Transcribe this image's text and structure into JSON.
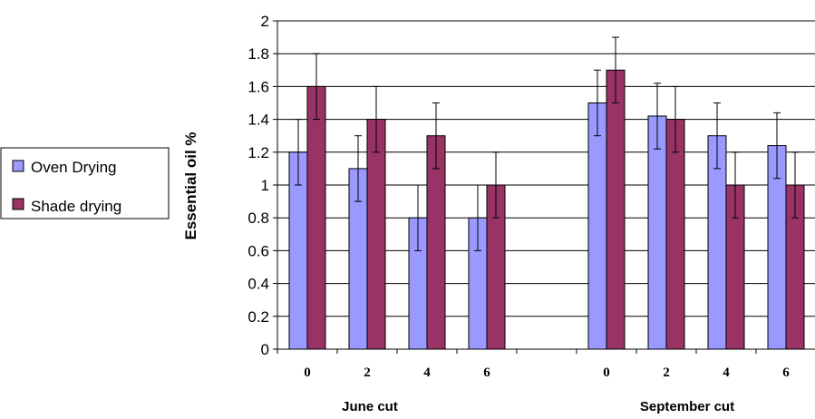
{
  "chart_data": {
    "type": "bar",
    "ylabel": "Essential oil %",
    "ylim": [
      0,
      2
    ],
    "yticks": [
      "0",
      "0.2",
      "0.4",
      "0.6",
      "0.8",
      "1",
      "1.2",
      "1.4",
      "1.6",
      "1.8",
      "2"
    ],
    "grid": true,
    "legend_position": "left",
    "groups": [
      {
        "label": "June cut",
        "categories": [
          "0",
          "2",
          "4",
          "6"
        ]
      },
      {
        "label": "September cut",
        "categories": [
          "0",
          "2",
          "4",
          "6"
        ]
      }
    ],
    "series": [
      {
        "name": "Oven Drying",
        "color": "#9999ff",
        "values": [
          1.2,
          1.1,
          0.8,
          0.8,
          1.5,
          1.42,
          1.3,
          1.24
        ],
        "error": [
          0.2,
          0.2,
          0.2,
          0.2,
          0.2,
          0.2,
          0.2,
          0.2
        ]
      },
      {
        "name": "Shade drying",
        "color": "#993366",
        "values": [
          1.6,
          1.4,
          1.3,
          1.0,
          1.7,
          1.4,
          1.0,
          1.0
        ],
        "error": [
          0.2,
          0.2,
          0.2,
          0.2,
          0.2,
          0.2,
          0.2,
          0.2
        ]
      }
    ]
  }
}
